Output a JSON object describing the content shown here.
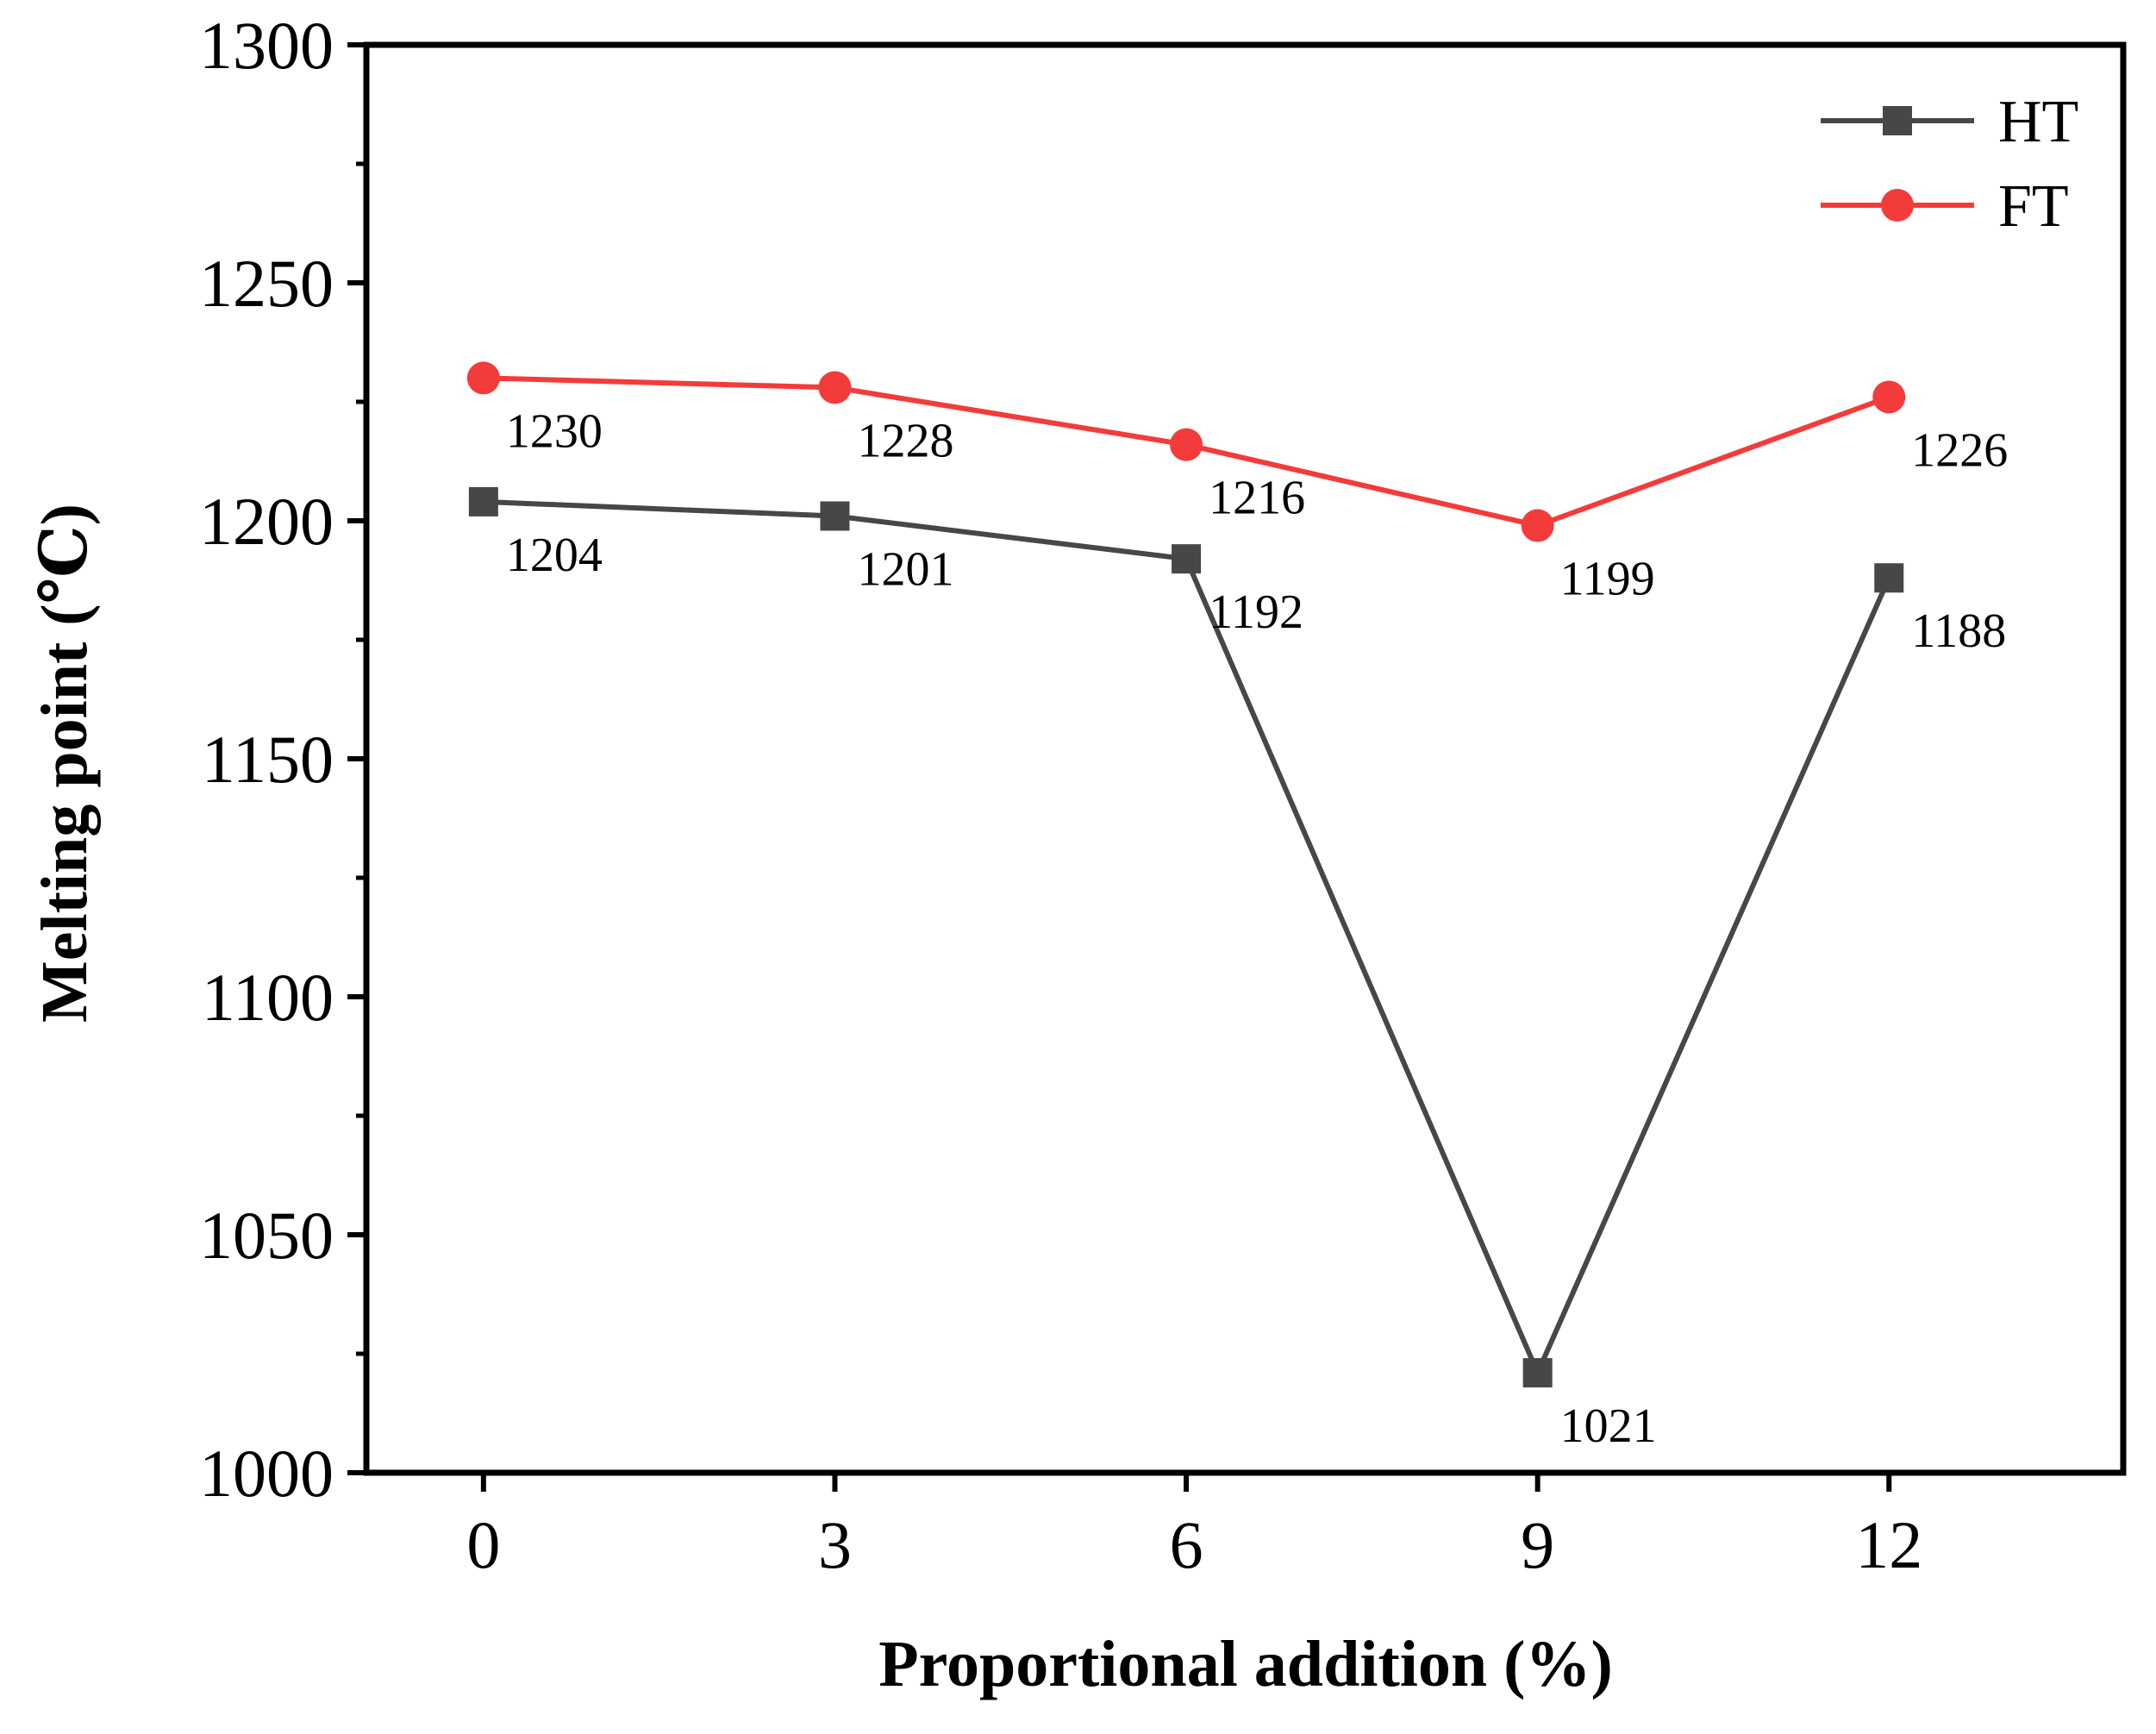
{
  "chart_data": {
    "type": "line",
    "title": "",
    "xlabel": "Proportional addition (%)",
    "ylabel": "Melting point (℃)",
    "x": [
      0,
      3,
      6,
      9,
      12
    ],
    "xticks": [
      "0",
      "3",
      "6",
      "9",
      "12"
    ],
    "xlim": [
      -1,
      14
    ],
    "ylim": [
      1000,
      1300
    ],
    "yticks": [
      "1000",
      "1050",
      "1100",
      "1150",
      "1200",
      "1250",
      "1300"
    ],
    "grid": false,
    "legend_position": "top-right",
    "series": [
      {
        "name": "HT",
        "marker": "square",
        "color": "#474747",
        "values": [
          1204,
          1201,
          1192,
          1021,
          1188
        ],
        "labels": [
          "1204",
          "1201",
          "1192",
          "1021",
          "1188"
        ]
      },
      {
        "name": "FT",
        "marker": "circle",
        "color": "#f33b3b",
        "values": [
          1230,
          1228,
          1216,
          1199,
          1226
        ],
        "labels": [
          "1230",
          "1228",
          "1216",
          "1199",
          "1226"
        ]
      }
    ]
  }
}
